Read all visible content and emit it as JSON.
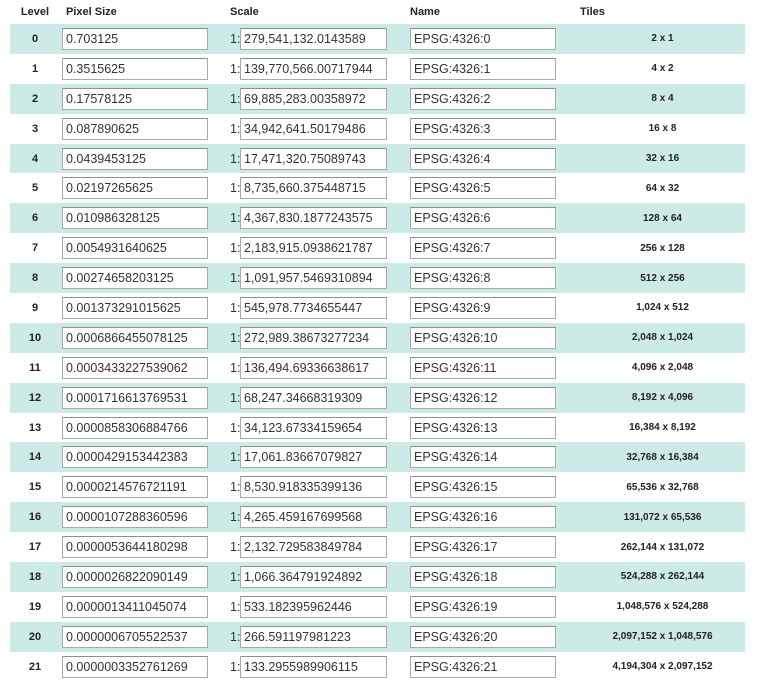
{
  "headers": {
    "level": "Level",
    "pixel_size": "Pixel Size",
    "scale": "Scale",
    "name": "Name",
    "tiles": "Tiles"
  },
  "scale_prefix": "1:",
  "rows": [
    {
      "level": "0",
      "pixel_size": "0.703125",
      "scale": "279,541,132.0143589",
      "name": "EPSG:4326:0",
      "tiles": "2 x 1"
    },
    {
      "level": "1",
      "pixel_size": "0.3515625",
      "scale": "139,770,566.00717944",
      "name": "EPSG:4326:1",
      "tiles": "4 x 2"
    },
    {
      "level": "2",
      "pixel_size": "0.17578125",
      "scale": "69,885,283.00358972",
      "name": "EPSG:4326:2",
      "tiles": "8 x 4"
    },
    {
      "level": "3",
      "pixel_size": "0.087890625",
      "scale": "34,942,641.50179486",
      "name": "EPSG:4326:3",
      "tiles": "16 x 8"
    },
    {
      "level": "4",
      "pixel_size": "0.0439453125",
      "scale": "17,471,320.75089743",
      "name": "EPSG:4326:4",
      "tiles": "32 x 16"
    },
    {
      "level": "5",
      "pixel_size": "0.02197265625",
      "scale": "8,735,660.375448715",
      "name": "EPSG:4326:5",
      "tiles": "64 x 32"
    },
    {
      "level": "6",
      "pixel_size": "0.010986328125",
      "scale": "4,367,830.1877243575",
      "name": "EPSG:4326:6",
      "tiles": "128 x 64"
    },
    {
      "level": "7",
      "pixel_size": "0.0054931640625",
      "scale": "2,183,915.0938621787",
      "name": "EPSG:4326:7",
      "tiles": "256 x 128"
    },
    {
      "level": "8",
      "pixel_size": "0.00274658203125",
      "scale": "1,091,957.5469310894",
      "name": "EPSG:4326:8",
      "tiles": "512 x 256"
    },
    {
      "level": "9",
      "pixel_size": "0.001373291015625",
      "scale": "545,978.7734655447",
      "name": "EPSG:4326:9",
      "tiles": "1,024 x 512"
    },
    {
      "level": "10",
      "pixel_size": "0.0006866455078125",
      "scale": "272,989.38673277234",
      "name": "EPSG:4326:10",
      "tiles": "2,048 x 1,024"
    },
    {
      "level": "11",
      "pixel_size": "0.0003433227539062",
      "scale": "136,494.69336638617",
      "name": "EPSG:4326:11",
      "tiles": "4,096 x 2,048"
    },
    {
      "level": "12",
      "pixel_size": "0.0001716613769531",
      "scale": "68,247.34668319309",
      "name": "EPSG:4326:12",
      "tiles": "8,192 x 4,096"
    },
    {
      "level": "13",
      "pixel_size": "0.0000858306884766",
      "scale": "34,123.67334159654",
      "name": "EPSG:4326:13",
      "tiles": "16,384 x 8,192"
    },
    {
      "level": "14",
      "pixel_size": "0.0000429153442383",
      "scale": "17,061.83667079827",
      "name": "EPSG:4326:14",
      "tiles": "32,768 x 16,384"
    },
    {
      "level": "15",
      "pixel_size": "0.0000214576721191",
      "scale": "8,530.918335399136",
      "name": "EPSG:4326:15",
      "tiles": "65,536 x 32,768"
    },
    {
      "level": "16",
      "pixel_size": "0.0000107288360596",
      "scale": "4,265.459167699568",
      "name": "EPSG:4326:16",
      "tiles": "131,072 x 65,536"
    },
    {
      "level": "17",
      "pixel_size": "0.0000053644180298",
      "scale": "2,132.729583849784",
      "name": "EPSG:4326:17",
      "tiles": "262,144 x 131,072"
    },
    {
      "level": "18",
      "pixel_size": "0.0000026822090149",
      "scale": "1,066.364791924892",
      "name": "EPSG:4326:18",
      "tiles": "524,288 x 262,144"
    },
    {
      "level": "19",
      "pixel_size": "0.0000013411045074",
      "scale": "533.182395962446",
      "name": "EPSG:4326:19",
      "tiles": "1,048,576 x 524,288"
    },
    {
      "level": "20",
      "pixel_size": "0.0000006705522537",
      "scale": "266.591197981223",
      "name": "EPSG:4326:20",
      "tiles": "2,097,152 x 1,048,576"
    },
    {
      "level": "21",
      "pixel_size": "0.0000003352761269",
      "scale": "133.2955989906115",
      "name": "EPSG:4326:21",
      "tiles": "4,194,304 x 2,097,152"
    }
  ],
  "colors": {
    "row_stripe": "#cdebe6",
    "row_plain": "#ffffff",
    "field_border": "#a9a9a9"
  }
}
